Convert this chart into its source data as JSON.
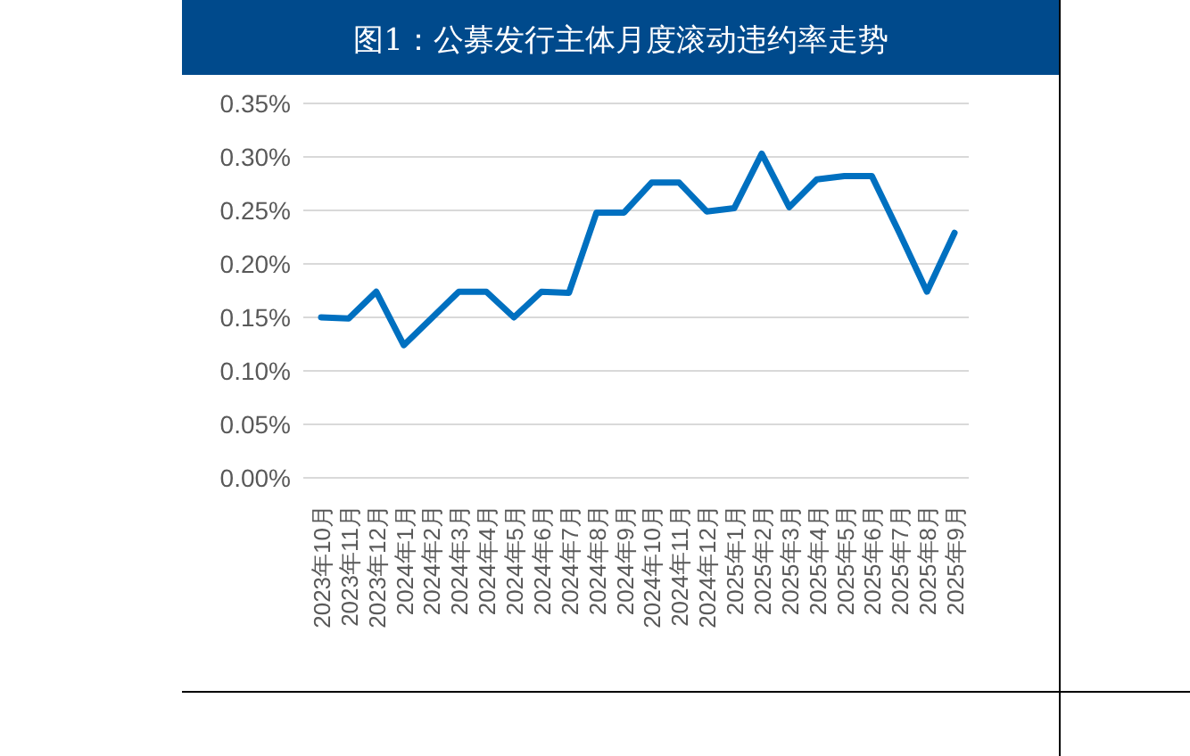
{
  "chart_data": {
    "type": "line",
    "title": "图1：公募发行主体月度滚动违约率走势",
    "categories": [
      "2023年10月",
      "2023年11月",
      "2023年12月",
      "2024年1月",
      "2024年2月",
      "2024年3月",
      "2024年4月",
      "2024年5月",
      "2024年6月",
      "2024年7月",
      "2024年8月",
      "2024年9月",
      "2024年10月",
      "2024年11月",
      "2024年12月",
      "2025年1月",
      "2025年2月",
      "2025年3月",
      "2025年4月",
      "2025年5月",
      "2025年6月",
      "2025年7月",
      "2025年8月",
      "2025年9月"
    ],
    "series": [
      {
        "color": "#0070c0",
        "values": [
          0.15,
          0.149,
          0.174,
          0.124,
          0.149,
          0.174,
          0.174,
          0.15,
          0.174,
          0.173,
          0.248,
          0.248,
          0.276,
          0.276,
          0.249,
          0.252,
          0.303,
          0.253,
          0.279,
          0.282,
          0.282,
          0.229,
          0.174,
          0.229
        ]
      }
    ],
    "ylim": [
      0,
      0.35
    ],
    "yticks": [
      {
        "value": 0,
        "label": "0.00%"
      },
      {
        "value": 0.05,
        "label": "0.05%"
      },
      {
        "value": 0.1,
        "label": "0.10%"
      },
      {
        "value": 0.15,
        "label": "0.15%"
      },
      {
        "value": 0.2,
        "label": "0.20%"
      },
      {
        "value": 0.25,
        "label": "0.25%"
      },
      {
        "value": 0.3,
        "label": "0.30%"
      },
      {
        "value": 0.35,
        "label": "0.35%"
      }
    ],
    "grid": "y",
    "marker": "none",
    "line_style": "solid"
  }
}
